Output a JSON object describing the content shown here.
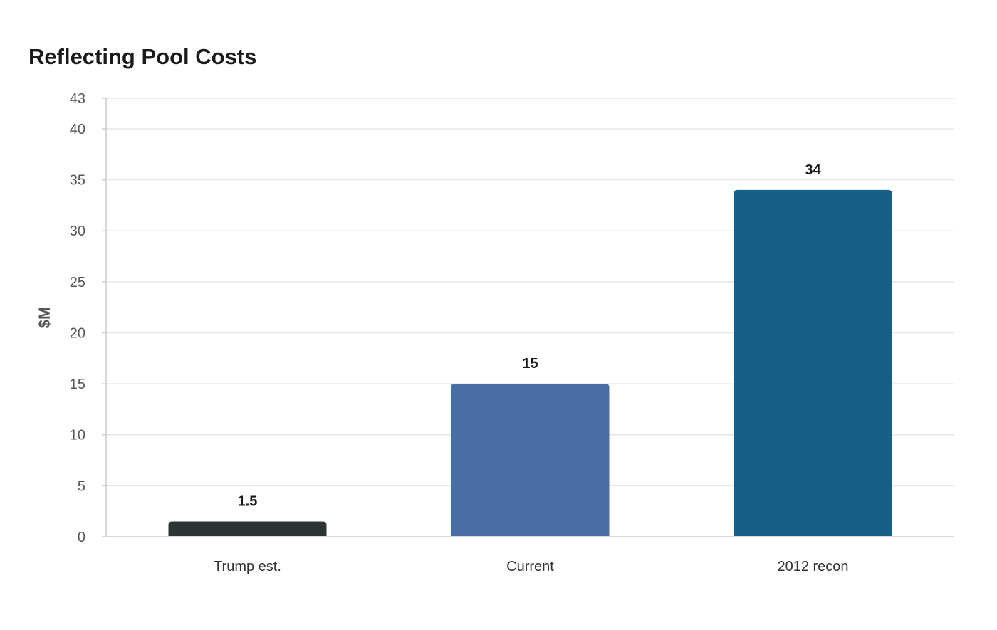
{
  "chart_data": {
    "type": "bar",
    "title": "Reflecting Pool Costs",
    "xlabel": "",
    "ylabel": "$M",
    "ylim": [
      0,
      43
    ],
    "yticks": [
      0,
      5,
      10,
      15,
      20,
      25,
      30,
      35,
      40,
      43
    ],
    "grid": true,
    "legend": "none",
    "categories": [
      "Trump est.",
      "Current",
      "2012 recon"
    ],
    "values": [
      1.5,
      15,
      34
    ],
    "data_labels": [
      "1.5",
      "15",
      "34"
    ],
    "colors": [
      "#2d3436",
      "#4a6fa5",
      "#166088"
    ]
  }
}
